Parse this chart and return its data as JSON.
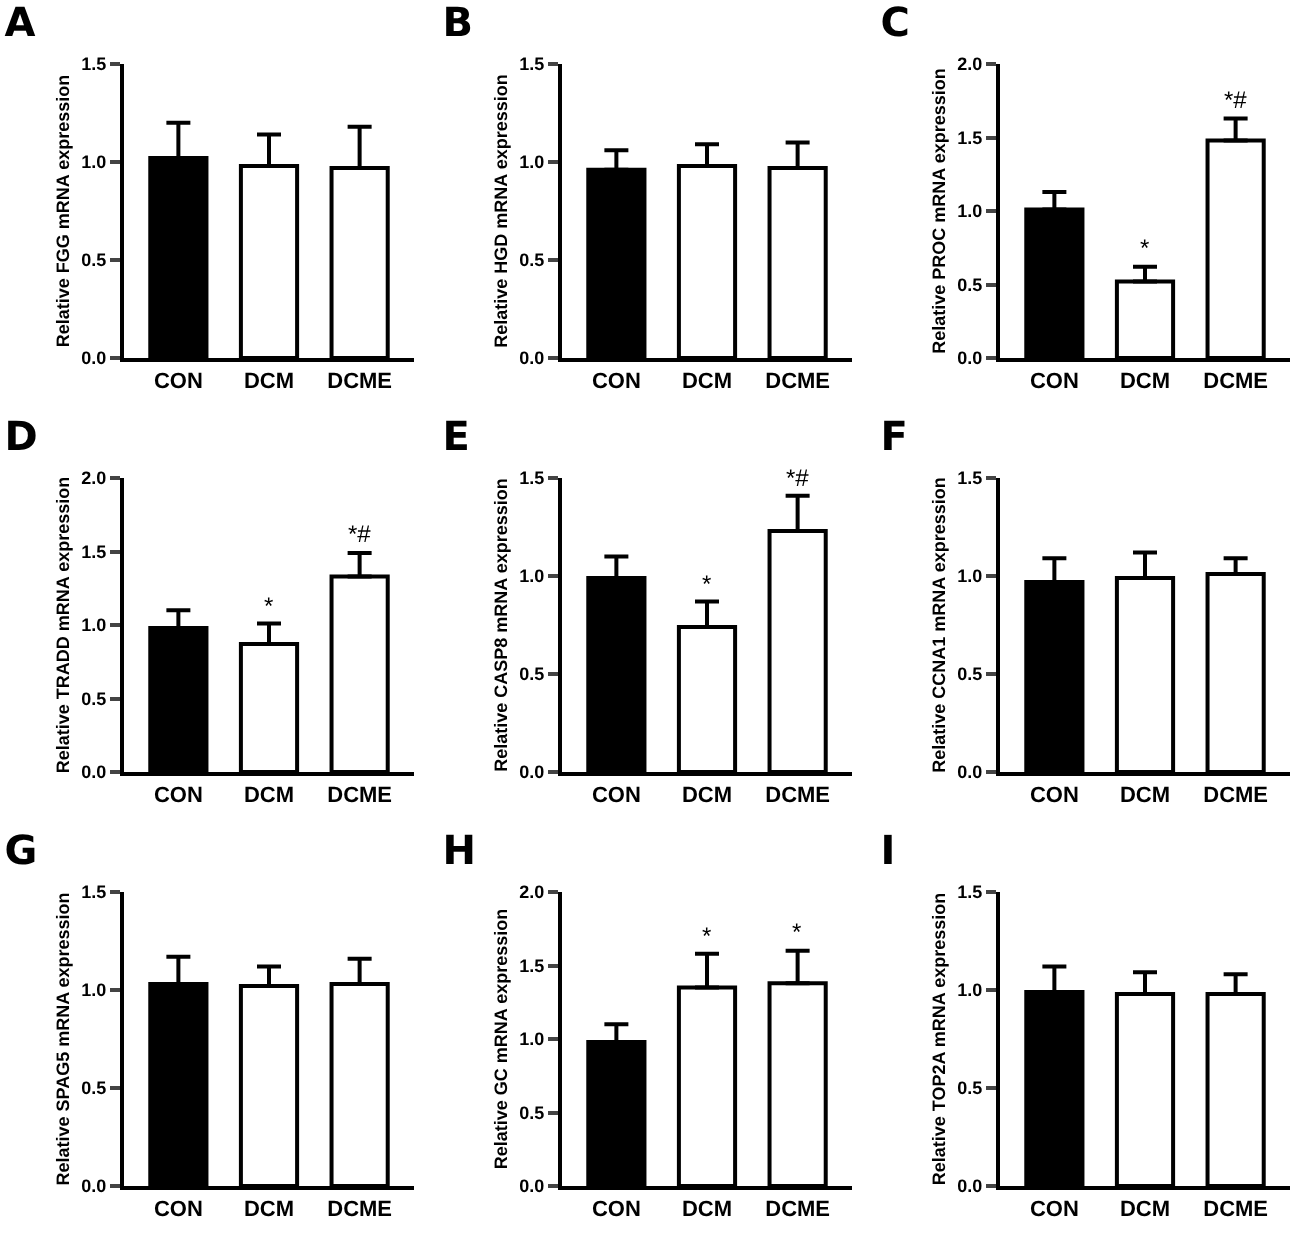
{
  "chart_data": [
    {
      "type": "bar",
      "title": "A",
      "ylabel": "Relative FGG mRNA expression",
      "categories": [
        "CON",
        "DCM",
        "DCME"
      ],
      "values": [
        1.02,
        0.98,
        0.97
      ],
      "errors": [
        [
          1.02,
          1.2
        ],
        [
          0.98,
          1.14
        ],
        [
          0.97,
          1.18
        ]
      ],
      "colors": [
        "#000000",
        "#ffffff",
        "#ffffff"
      ],
      "ylim": [
        0,
        1.5
      ],
      "yticks": [
        {
          "value": 0,
          "label": "0.0"
        },
        {
          "value": 0.5,
          "label": "0.5"
        },
        {
          "value": 1,
          "label": "1.0"
        },
        {
          "value": 1.5,
          "label": "1.5"
        }
      ]
    },
    {
      "type": "bar",
      "title": "B",
      "ylabel": "Relative HGD mRNA expression",
      "categories": [
        "CON",
        "DCM",
        "DCME"
      ],
      "values": [
        0.96,
        0.98,
        0.97
      ],
      "errors": [
        [
          0.96,
          1.06
        ],
        [
          0.98,
          1.09
        ],
        [
          0.97,
          1.1
        ]
      ],
      "colors": [
        "#000000",
        "#ffffff",
        "#ffffff"
      ],
      "ylim": [
        0,
        1.5
      ],
      "yticks": [
        {
          "value": 0,
          "label": "0.0"
        },
        {
          "value": 0.5,
          "label": "0.5"
        },
        {
          "value": 1,
          "label": "1.0"
        },
        {
          "value": 1.5,
          "label": "1.5"
        }
      ]
    },
    {
      "type": "bar",
      "title": "C",
      "ylabel": "Relative PROC mRNA expression",
      "categories": [
        "CON",
        "DCM",
        "DCME"
      ],
      "values": [
        1.01,
        0.52,
        1.48
      ],
      "errors": [
        [
          1.01,
          1.13
        ],
        [
          0.52,
          0.62
        ],
        [
          1.48,
          1.63
        ]
      ],
      "colors": [
        "#000000",
        "#ffffff",
        "#ffffff"
      ],
      "ylim": [
        0,
        2
      ],
      "yticks": [
        {
          "value": 0,
          "label": "0.0"
        },
        {
          "value": 0.5,
          "label": "0.5"
        },
        {
          "value": 1,
          "label": "1.0"
        },
        {
          "value": 1.5,
          "label": "1.5"
        },
        {
          "value": 2,
          "label": "2.0"
        }
      ],
      "annotations": [
        {
          "text": "*",
          "x": "DCM",
          "y": 0.62
        },
        {
          "text": "*#",
          "x": "DCME",
          "y": 1.63
        }
      ]
    },
    {
      "type": "bar",
      "title": "D",
      "ylabel": "Relative TRADD mRNA expression",
      "categories": [
        "CON",
        "DCM",
        "DCME"
      ],
      "values": [
        0.98,
        0.87,
        1.33
      ],
      "errors": [
        [
          0.98,
          1.1
        ],
        [
          0.87,
          1.01
        ],
        [
          1.33,
          1.49
        ]
      ],
      "colors": [
        "#000000",
        "#ffffff",
        "#ffffff"
      ],
      "ylim": [
        0,
        2
      ],
      "yticks": [
        {
          "value": 0,
          "label": "0.0"
        },
        {
          "value": 0.5,
          "label": "0.5"
        },
        {
          "value": 1,
          "label": "1.0"
        },
        {
          "value": 1.5,
          "label": "1.5"
        },
        {
          "value": 2,
          "label": "2.0"
        }
      ],
      "annotations": [
        {
          "text": "*",
          "x": "DCM",
          "y": 1.01
        },
        {
          "text": "*#",
          "x": "DCME",
          "y": 1.49
        }
      ]
    },
    {
      "type": "bar",
      "title": "E",
      "ylabel": "Relative CASP8 mRNA expression",
      "categories": [
        "CON",
        "DCM",
        "DCME"
      ],
      "values": [
        0.99,
        0.74,
        1.23
      ],
      "errors": [
        [
          0.99,
          1.1
        ],
        [
          0.74,
          0.87
        ],
        [
          1.23,
          1.41
        ]
      ],
      "colors": [
        "#000000",
        "#ffffff",
        "#ffffff"
      ],
      "ylim": [
        0,
        1.5
      ],
      "yticks": [
        {
          "value": 0,
          "label": "0.0"
        },
        {
          "value": 0.5,
          "label": "0.5"
        },
        {
          "value": 1,
          "label": "1.0"
        },
        {
          "value": 1.5,
          "label": "1.5"
        }
      ],
      "annotations": [
        {
          "text": "*",
          "x": "DCM",
          "y": 0.87
        },
        {
          "text": "*#",
          "x": "DCME",
          "y": 1.41
        }
      ]
    },
    {
      "type": "bar",
      "title": "F",
      "ylabel": "Relative CCNA1 mRNA expression",
      "categories": [
        "CON",
        "DCM",
        "DCME"
      ],
      "values": [
        0.97,
        0.99,
        1.01
      ],
      "errors": [
        [
          0.97,
          1.09
        ],
        [
          0.99,
          1.12
        ],
        [
          1.01,
          1.09
        ]
      ],
      "colors": [
        "#000000",
        "#ffffff",
        "#ffffff"
      ],
      "ylim": [
        0,
        1.5
      ],
      "yticks": [
        {
          "value": 0,
          "label": "0.0"
        },
        {
          "value": 0.5,
          "label": "0.5"
        },
        {
          "value": 1,
          "label": "1.0"
        },
        {
          "value": 1.5,
          "label": "1.5"
        }
      ]
    },
    {
      "type": "bar",
      "title": "G",
      "ylabel": "Relative SPAG5 mRNA expression",
      "categories": [
        "CON",
        "DCM",
        "DCME"
      ],
      "values": [
        1.03,
        1.02,
        1.03
      ],
      "errors": [
        [
          1.03,
          1.17
        ],
        [
          1.02,
          1.12
        ],
        [
          1.03,
          1.16
        ]
      ],
      "colors": [
        "#000000",
        "#ffffff",
        "#ffffff"
      ],
      "ylim": [
        0,
        1.5
      ],
      "yticks": [
        {
          "value": 0,
          "label": "0.0"
        },
        {
          "value": 0.5,
          "label": "0.5"
        },
        {
          "value": 1,
          "label": "1.0"
        },
        {
          "value": 1.5,
          "label": "1.5"
        }
      ]
    },
    {
      "type": "bar",
      "title": "H",
      "ylabel": "Relative GC mRNA expression",
      "categories": [
        "CON",
        "DCM",
        "DCME"
      ],
      "values": [
        0.98,
        1.35,
        1.38
      ],
      "errors": [
        [
          0.98,
          1.1
        ],
        [
          1.35,
          1.58
        ],
        [
          1.38,
          1.6
        ]
      ],
      "colors": [
        "#000000",
        "#ffffff",
        "#ffffff"
      ],
      "ylim": [
        0,
        2
      ],
      "yticks": [
        {
          "value": 0,
          "label": "0.0"
        },
        {
          "value": 0.5,
          "label": "0.5"
        },
        {
          "value": 1,
          "label": "1.0"
        },
        {
          "value": 1.5,
          "label": "1.5"
        },
        {
          "value": 2,
          "label": "2.0"
        }
      ],
      "annotations": [
        {
          "text": "*",
          "x": "DCM",
          "y": 1.58
        },
        {
          "text": "*",
          "x": "DCME",
          "y": 1.6
        }
      ]
    },
    {
      "type": "bar",
      "title": "I",
      "ylabel": "Relative TOP2A mRNA expression",
      "categories": [
        "CON",
        "DCM",
        "DCME"
      ],
      "values": [
        0.99,
        0.98,
        0.98
      ],
      "errors": [
        [
          0.99,
          1.12
        ],
        [
          0.98,
          1.09
        ],
        [
          0.98,
          1.08
        ]
      ],
      "colors": [
        "#000000",
        "#ffffff",
        "#ffffff"
      ],
      "ylim": [
        0,
        1.5
      ],
      "yticks": [
        {
          "value": 0,
          "label": "0.0"
        },
        {
          "value": 0.5,
          "label": "0.5"
        },
        {
          "value": 1,
          "label": "1.0"
        },
        {
          "value": 1.5,
          "label": "1.5"
        }
      ]
    }
  ]
}
